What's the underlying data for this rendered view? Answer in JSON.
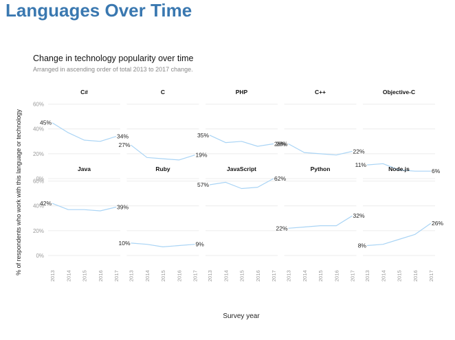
{
  "page": {
    "heading": "Languages Over Time"
  },
  "chart_data": {
    "type": "line",
    "title": "Change in technology popularity over time",
    "subtitle": "Arranged in ascending order of total 2013 to 2017 change.",
    "xlabel": "Survey year",
    "ylabel": "% of respondents who work with this language or technology",
    "x": [
      2013,
      2014,
      2015,
      2016,
      2017
    ],
    "x_tick_labels": [
      "2013",
      "2014",
      "2015",
      "2016",
      "2017"
    ],
    "y_ticks": [
      0,
      20,
      40,
      60
    ],
    "y_tick_labels": [
      "0%",
      "20%",
      "40%",
      "60%"
    ],
    "ylim": [
      0,
      62
    ],
    "grid": true,
    "line_color": "#a9d4f5",
    "facets": [
      {
        "name": "C#",
        "values": [
          45,
          37,
          31,
          30,
          34
        ],
        "start_label": "45%",
        "end_label": "34%"
      },
      {
        "name": "C",
        "values": [
          27,
          17,
          16,
          15,
          19
        ],
        "start_label": "27%",
        "end_label": "19%"
      },
      {
        "name": "PHP",
        "values": [
          35,
          29,
          30,
          26,
          28
        ],
        "start_label": "35%",
        "end_label": "28%"
      },
      {
        "name": "C++",
        "values": [
          28,
          21,
          20,
          19,
          22
        ],
        "start_label": "28%",
        "end_label": "22%"
      },
      {
        "name": "Objective-C",
        "values": [
          11,
          12,
          7,
          6,
          6
        ],
        "start_label": "11%",
        "end_label": "6%"
      },
      {
        "name": "Java",
        "values": [
          42,
          37,
          37,
          36,
          39
        ],
        "start_label": "42%",
        "end_label": "39%"
      },
      {
        "name": "Ruby",
        "values": [
          10,
          9,
          7,
          8,
          9
        ],
        "start_label": "10%",
        "end_label": "9%"
      },
      {
        "name": "JavaScript",
        "values": [
          57,
          59,
          54,
          55,
          62
        ],
        "start_label": "57%",
        "end_label": "62%"
      },
      {
        "name": "Python",
        "values": [
          22,
          23,
          24,
          24,
          32
        ],
        "start_label": "22%",
        "end_label": "32%"
      },
      {
        "name": "Node.js",
        "values": [
          8,
          9,
          13,
          17,
          26
        ],
        "start_label": "8%",
        "end_label": "26%"
      }
    ]
  }
}
